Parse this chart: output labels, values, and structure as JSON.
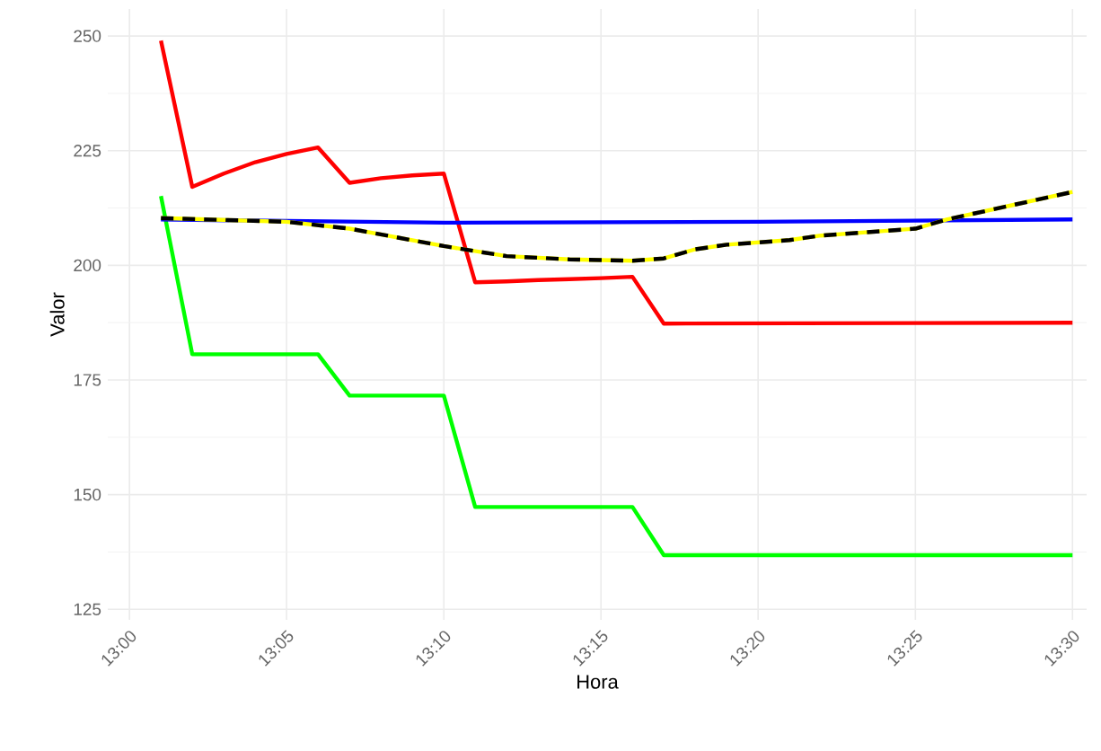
{
  "chart_data": {
    "type": "line",
    "xlabel": "Hora",
    "ylabel": "Valor",
    "grid": true,
    "marker": "none",
    "xlim": [
      12.9885,
      13.5075
    ],
    "ylim": [
      122.7,
      255.9
    ],
    "xticks": [
      {
        "value": 13,
        "label": "13:00"
      },
      {
        "value": 13.0833,
        "label": "13:05"
      },
      {
        "value": 13.1667,
        "label": "13:10"
      },
      {
        "value": 13.25,
        "label": "13:15"
      },
      {
        "value": 13.3333,
        "label": "13:20"
      },
      {
        "value": 13.4167,
        "label": "13:25"
      },
      {
        "value": 13.5,
        "label": "13:30"
      }
    ],
    "yticks": [
      125,
      150,
      175,
      200,
      225,
      250
    ],
    "series": [
      {
        "color": "#ff0000",
        "line_style": "solid",
        "x": [
          13.0167,
          13.0333,
          13.05,
          13.0667,
          13.0833,
          13.1,
          13.1167,
          13.1333,
          13.15,
          13.1667,
          13.1833,
          13.2,
          13.2167,
          13.2333,
          13.25,
          13.2667,
          13.2833,
          13.5
        ],
        "values": [
          249,
          217.1,
          220,
          222.5,
          224.3,
          225.7,
          218,
          219,
          219.6,
          220,
          196.3,
          196.5,
          196.8,
          197,
          197.2,
          197.5,
          187.3,
          187.5
        ]
      },
      {
        "color": "#00ff00",
        "line_style": "solid",
        "x": [
          13.0167,
          13.0333,
          13.1,
          13.1167,
          13.1667,
          13.1833,
          13.2667,
          13.2833,
          13.5
        ],
        "values": [
          215.1,
          180.6,
          180.6,
          171.6,
          171.6,
          147.3,
          147.3,
          136.8,
          136.8
        ]
      },
      {
        "color": "#0000ff",
        "line_style": "solid",
        "x": [
          13.0167,
          13.1667,
          13.3333,
          13.5
        ],
        "values": [
          210,
          209.3,
          209.5,
          210
        ]
      },
      {
        "color": "#ffff00",
        "line_style": "solid",
        "x": [
          13.0167,
          13.0833,
          13.1167,
          13.1667,
          13.2,
          13.2333,
          13.2667,
          13.2833,
          13.3,
          13.3167,
          13.35,
          13.3667,
          13.4,
          13.4167,
          13.4333,
          13.4667,
          13.5
        ],
        "values": [
          210.3,
          209.5,
          208,
          204.2,
          202,
          201.3,
          201,
          201.5,
          203.5,
          204.5,
          205.5,
          206.5,
          207.5,
          208,
          210,
          213,
          216
        ]
      },
      {
        "color": "#000000",
        "line_style": "dashed",
        "x": [
          13.0167,
          13.0833,
          13.1167,
          13.1667,
          13.2,
          13.2333,
          13.2667,
          13.2833,
          13.3,
          13.3167,
          13.35,
          13.3667,
          13.4,
          13.4167,
          13.4333,
          13.4667,
          13.5
        ],
        "values": [
          210.3,
          209.5,
          208,
          204.2,
          202,
          201.3,
          201,
          201.5,
          203.5,
          204.5,
          205.5,
          206.5,
          207.5,
          208,
          210,
          213,
          216
        ]
      }
    ]
  }
}
